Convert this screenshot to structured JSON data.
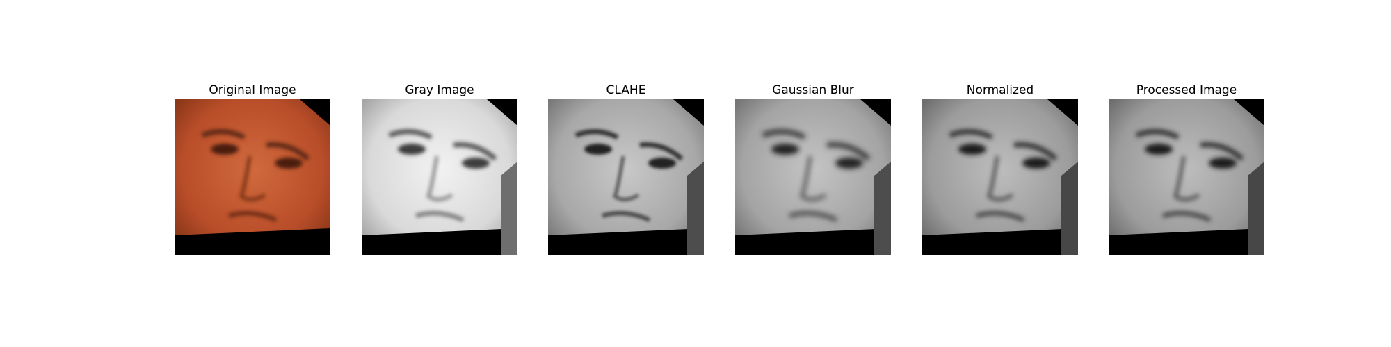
{
  "panels": [
    {
      "title": "Original Image",
      "tone": "color"
    },
    {
      "title": "Gray Image",
      "tone": "gray-bright"
    },
    {
      "title": "CLAHE",
      "tone": "gray-clahe"
    },
    {
      "title": "Gaussian Blur",
      "tone": "gray-blur"
    },
    {
      "title": "Normalized",
      "tone": "gray-norm"
    },
    {
      "title": "Processed Image",
      "tone": "gray-proc"
    }
  ],
  "colors": {
    "background": "#ffffff",
    "skin": "#c0552f",
    "mask": "#000000"
  }
}
